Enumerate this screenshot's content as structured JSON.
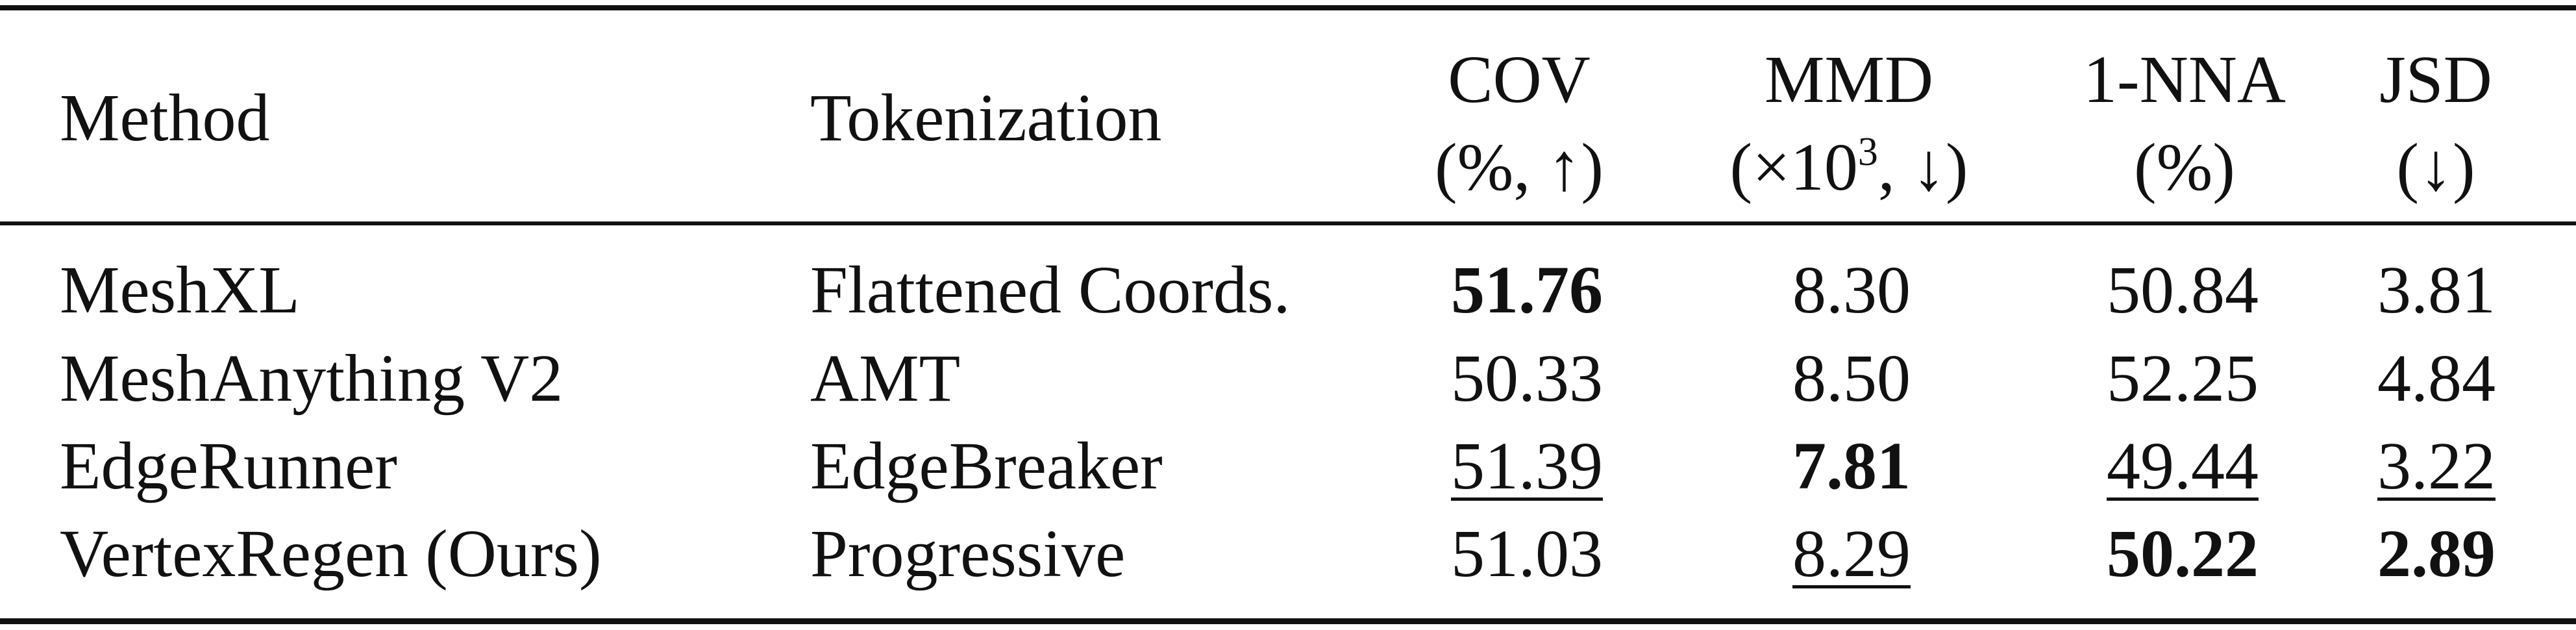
{
  "table": {
    "headers": {
      "method": "Method",
      "tokenization": "Tokenization",
      "cov": {
        "line1": "COV",
        "line2": "(%, ↑)"
      },
      "mmd": {
        "line1": "MMD",
        "line2_pre": "(×10",
        "line2_sup": "3",
        "line2_post": ", ↓)"
      },
      "nna": {
        "line1": "1-NNA",
        "line2": "(%)"
      },
      "jsd": {
        "line1": "JSD",
        "line2": "(↓)"
      }
    },
    "rows": [
      {
        "method": "MeshXL",
        "tokenization": "Flattened Coords.",
        "cov": "51.76",
        "mmd": "8.30",
        "nna": "50.84",
        "jsd": "3.81"
      },
      {
        "method": "MeshAnything V2",
        "tokenization": "AMT",
        "cov": "50.33",
        "mmd": "8.50",
        "nna": "52.25",
        "jsd": "4.84"
      },
      {
        "method": "EdgeRunner",
        "tokenization": "EdgeBreaker",
        "cov": "51.39",
        "mmd": "7.81",
        "nna": "49.44",
        "jsd": "3.22"
      },
      {
        "method": "VertexRegen (Ours)",
        "tokenization": "Progressive",
        "cov": "51.03",
        "mmd": "8.29",
        "nna": "50.22",
        "jsd": "2.89"
      }
    ],
    "emphasis": {
      "bold": [
        "0.cov",
        "2.mmd",
        "3.nna",
        "3.jsd"
      ],
      "underline": [
        "2.cov",
        "3.mmd",
        "2.nna",
        "2.jsd"
      ]
    }
  }
}
